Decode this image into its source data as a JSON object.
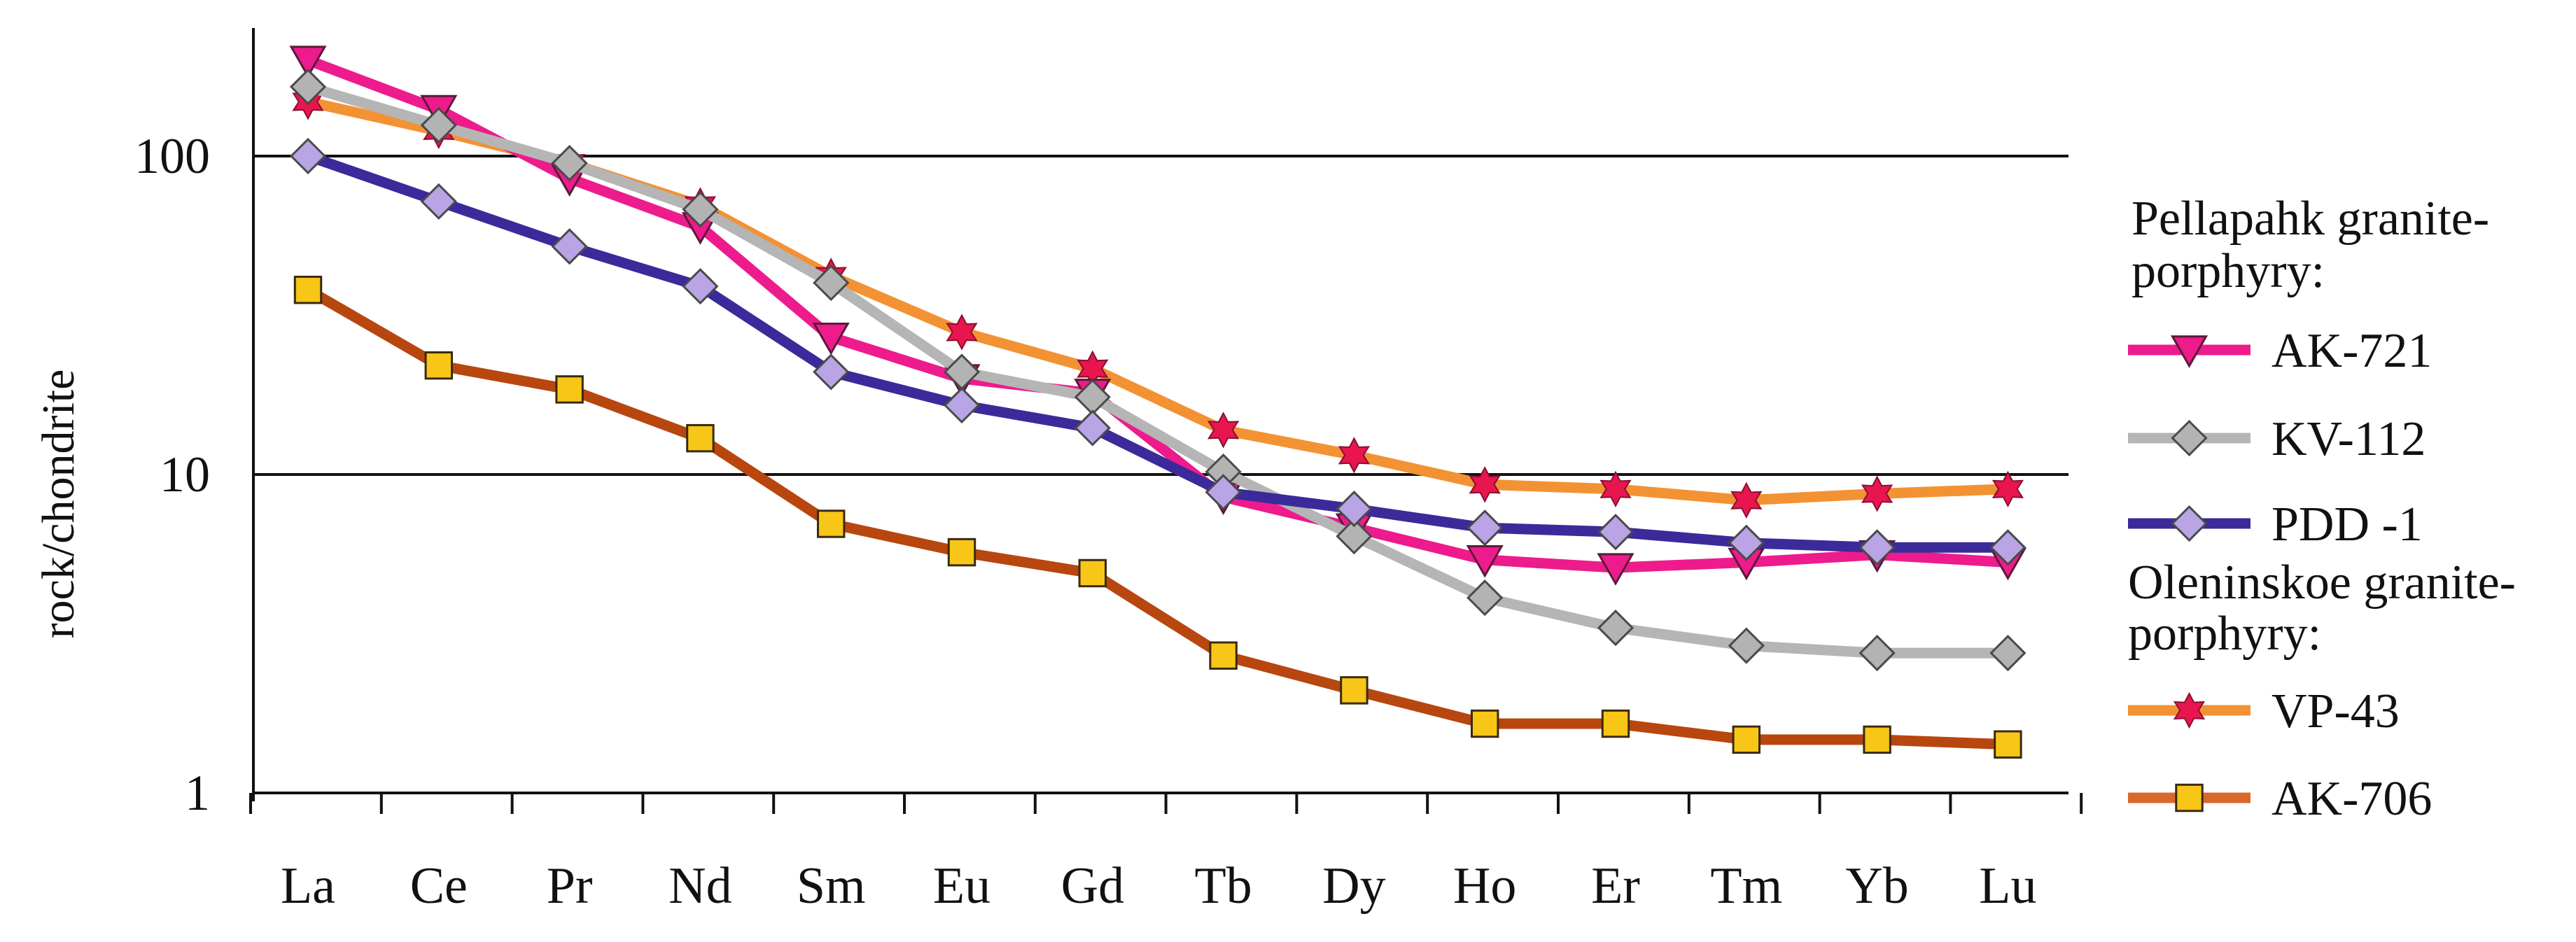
{
  "chart_data": {
    "type": "line",
    "scale": "log",
    "ylabel": "rock/chondrite",
    "ylim": [
      1,
      250
    ],
    "yticks": [
      {
        "value": 1,
        "label": "1"
      },
      {
        "value": 10,
        "label": "10"
      },
      {
        "value": 100,
        "label": "100"
      }
    ],
    "gridlines": [
      10,
      100
    ],
    "categories": [
      "La",
      "Ce",
      "Pr",
      "Nd",
      "Sm",
      "Eu",
      "Gd",
      "Tb",
      "Dy",
      "Ho",
      "Er",
      "Tm",
      "Yb",
      "Lu"
    ],
    "legend_groups": [
      {
        "title_lines": [
          "Pellapahk granite-",
          "porphyry:"
        ],
        "series": [
          "AK-721",
          "KV-112",
          "PDD -1"
        ]
      },
      {
        "title_lines": [
          "Oleninskoe granite-",
          "porphyry:"
        ],
        "series": [
          "VP-43",
          "AK-706"
        ]
      }
    ],
    "series": [
      {
        "name": "VP-43",
        "color": "#f39233",
        "marker": "star",
        "marker_color": "#e8154f",
        "values": [
          148,
          120,
          95,
          70,
          42,
          28,
          21.5,
          13.8,
          11.5,
          9.3,
          9.0,
          8.3,
          8.7,
          9.0
        ]
      },
      {
        "name": "AK-721",
        "color": "#ed1b8c",
        "marker": "triangle-down",
        "marker_color": "#ed1b8c",
        "values": [
          200,
          140,
          85,
          60,
          27,
          20,
          18,
          8.5,
          6.8,
          5.4,
          5.1,
          5.3,
          5.6,
          5.3
        ]
      },
      {
        "name": "KV-112",
        "color": "#b5b5b5",
        "marker": "diamond",
        "marker_color": "#b3b3b3",
        "values": [
          165,
          125,
          95,
          68,
          40,
          21,
          17.5,
          10.2,
          6.4,
          4.1,
          3.3,
          2.9,
          2.75,
          2.75
        ]
      },
      {
        "name": "PDD -1",
        "color": "#3b2a9a",
        "marker": "diamond",
        "marker_color": "#b9a4e6",
        "values": [
          100,
          72,
          52,
          39,
          21,
          16.5,
          14,
          8.8,
          7.8,
          6.8,
          6.6,
          6.1,
          5.9,
          5.9
        ]
      },
      {
        "name": "AK-706",
        "color": "#b8460f",
        "marker": "square",
        "marker_color": "#f7c617",
        "values": [
          38,
          22,
          18.5,
          13,
          7.0,
          5.7,
          4.9,
          2.7,
          2.1,
          1.65,
          1.65,
          1.47,
          1.47,
          1.42
        ]
      }
    ]
  }
}
